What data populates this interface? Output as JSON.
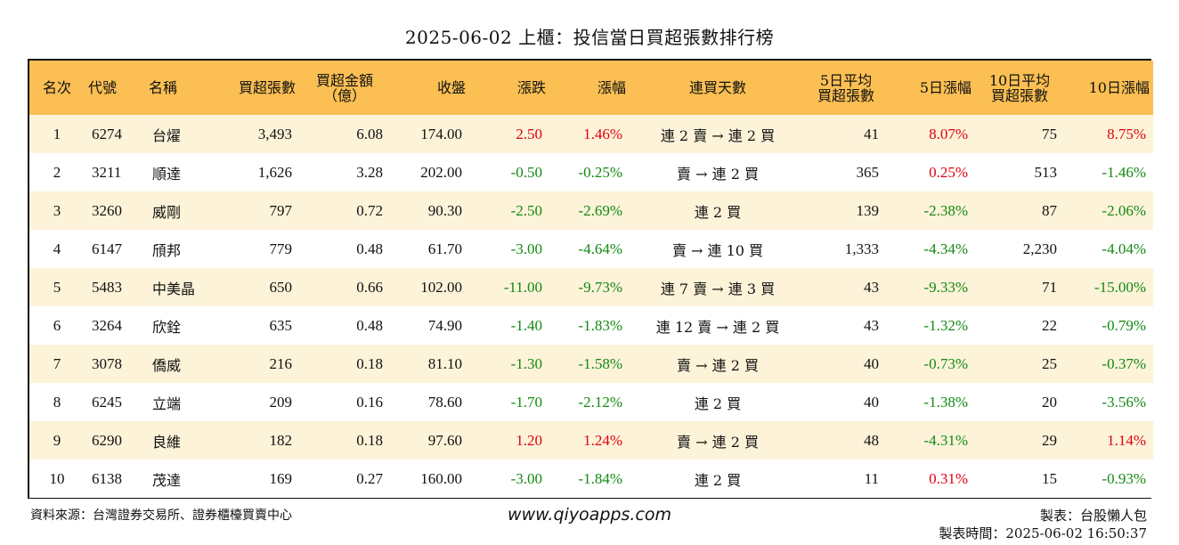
{
  "title": "2025-06-02 上櫃：投信當日買超張數排行榜",
  "headers": {
    "rank": "名次",
    "code": "代號",
    "name": "名稱",
    "buy_lots": "買超張數",
    "buy_amount_1": "買超金額",
    "buy_amount_2": "（億）",
    "close": "收盤",
    "change": "漲跌",
    "change_pct": "漲幅",
    "streak": "連買天數",
    "avg5_1": "5日平均",
    "avg5_2": "買超張數",
    "pct5": "5日漲幅",
    "avg10_1": "10日平均",
    "avg10_2": "買超張數",
    "pct10": "10日漲幅"
  },
  "rows": [
    {
      "rank": "1",
      "code": "6274",
      "name": "台燿",
      "buy_lots": "3,493",
      "buy_amount": "6.08",
      "close": "174.00",
      "change": "2.50",
      "change_pct": "1.46%",
      "streak": "連 2 賣 → 連 2 買",
      "avg5": "41",
      "pct5": "8.07%",
      "avg10": "75",
      "pct10": "8.75%"
    },
    {
      "rank": "2",
      "code": "3211",
      "name": "順達",
      "buy_lots": "1,626",
      "buy_amount": "3.28",
      "close": "202.00",
      "change": "-0.50",
      "change_pct": "-0.25%",
      "streak": "賣 → 連 2 買",
      "avg5": "365",
      "pct5": "0.25%",
      "avg10": "513",
      "pct10": "-1.46%"
    },
    {
      "rank": "3",
      "code": "3260",
      "name": "威剛",
      "buy_lots": "797",
      "buy_amount": "0.72",
      "close": "90.30",
      "change": "-2.50",
      "change_pct": "-2.69%",
      "streak": "連 2 買",
      "avg5": "139",
      "pct5": "-2.38%",
      "avg10": "87",
      "pct10": "-2.06%"
    },
    {
      "rank": "4",
      "code": "6147",
      "name": "頎邦",
      "buy_lots": "779",
      "buy_amount": "0.48",
      "close": "61.70",
      "change": "-3.00",
      "change_pct": "-4.64%",
      "streak": "賣 → 連 10 買",
      "avg5": "1,333",
      "pct5": "-4.34%",
      "avg10": "2,230",
      "pct10": "-4.04%"
    },
    {
      "rank": "5",
      "code": "5483",
      "name": "中美晶",
      "buy_lots": "650",
      "buy_amount": "0.66",
      "close": "102.00",
      "change": "-11.00",
      "change_pct": "-9.73%",
      "streak": "連 7 賣 → 連 3 買",
      "avg5": "43",
      "pct5": "-9.33%",
      "avg10": "71",
      "pct10": "-15.00%"
    },
    {
      "rank": "6",
      "code": "3264",
      "name": "欣銓",
      "buy_lots": "635",
      "buy_amount": "0.48",
      "close": "74.90",
      "change": "-1.40",
      "change_pct": "-1.83%",
      "streak": "連 12 賣 → 連 2 買",
      "avg5": "43",
      "pct5": "-1.32%",
      "avg10": "22",
      "pct10": "-0.79%"
    },
    {
      "rank": "7",
      "code": "3078",
      "name": "僑威",
      "buy_lots": "216",
      "buy_amount": "0.18",
      "close": "81.10",
      "change": "-1.30",
      "change_pct": "-1.58%",
      "streak": "賣 → 連 2 買",
      "avg5": "40",
      "pct5": "-0.73%",
      "avg10": "25",
      "pct10": "-0.37%"
    },
    {
      "rank": "8",
      "code": "6245",
      "name": "立端",
      "buy_lots": "209",
      "buy_amount": "0.16",
      "close": "78.60",
      "change": "-1.70",
      "change_pct": "-2.12%",
      "streak": "連 2 買",
      "avg5": "40",
      "pct5": "-1.38%",
      "avg10": "20",
      "pct10": "-3.56%"
    },
    {
      "rank": "9",
      "code": "6290",
      "name": "良維",
      "buy_lots": "182",
      "buy_amount": "0.18",
      "close": "97.60",
      "change": "1.20",
      "change_pct": "1.24%",
      "streak": "賣 → 連 2 買",
      "avg5": "48",
      "pct5": "-4.31%",
      "avg10": "29",
      "pct10": "1.14%"
    },
    {
      "rank": "10",
      "code": "6138",
      "name": "茂達",
      "buy_lots": "169",
      "buy_amount": "0.27",
      "close": "160.00",
      "change": "-3.00",
      "change_pct": "-1.84%",
      "streak": "連 2 買",
      "avg5": "11",
      "pct5": "0.31%",
      "avg10": "15",
      "pct10": "-0.93%"
    }
  ],
  "colors": {
    "header_bg": "#fbbf53",
    "odd_row_bg": "#fdf3d9",
    "positive": "#e0000f",
    "negative": "#128a12"
  },
  "footer": {
    "source": "資料來源：台灣證券交易所、證券櫃檯買賣中心",
    "website": "www.qiyoapps.com",
    "maker": "製表：台股懶人包",
    "made_time": "製表時間：2025-06-02 16:50:37"
  }
}
